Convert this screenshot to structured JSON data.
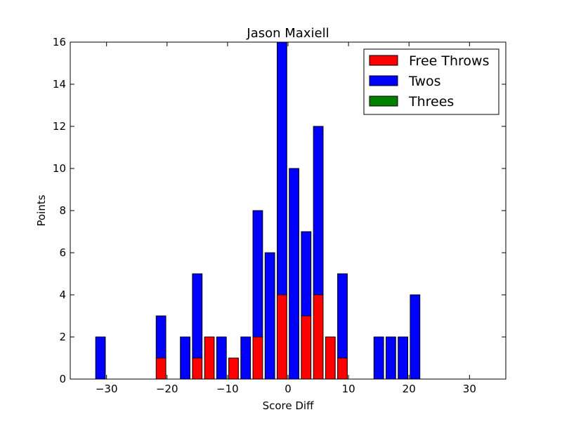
{
  "chart_data": {
    "type": "bar",
    "stacked": true,
    "title": "Jason Maxiell",
    "xlabel": "Score Diff",
    "ylabel": "Points",
    "xlim": [
      -36,
      36
    ],
    "ylim": [
      0,
      16
    ],
    "xticks": [
      -30,
      -20,
      -10,
      0,
      10,
      20,
      30
    ],
    "yticks": [
      0,
      2,
      4,
      6,
      8,
      10,
      12,
      14,
      16
    ],
    "tick_labels_x": [
      "−30",
      "−20",
      "−10",
      "0",
      "10",
      "20",
      "30"
    ],
    "tick_labels_y": [
      "0",
      "2",
      "4",
      "6",
      "8",
      "10",
      "12",
      "14",
      "16"
    ],
    "bar_width": 1.6,
    "grid": false,
    "legend_position": "top-right",
    "x": [
      -35,
      -33,
      -31,
      -29,
      -27,
      -25,
      -23,
      -21,
      -19,
      -17,
      -15,
      -13,
      -11,
      -9,
      -7,
      -5,
      -3,
      -1,
      1,
      3,
      5,
      7,
      9,
      11,
      13,
      15,
      17,
      19,
      21,
      23,
      25,
      27,
      29,
      31,
      33,
      35
    ],
    "series": [
      {
        "name": "Free Throws",
        "color": "#ff0000",
        "values": [
          0,
          0,
          0,
          0,
          0,
          0,
          0,
          1,
          0,
          0,
          1,
          2,
          0,
          1,
          0,
          2,
          0,
          4,
          0,
          3,
          4,
          2,
          1,
          0,
          0,
          0,
          0,
          0,
          0,
          0,
          0,
          0,
          0,
          0,
          0,
          0
        ]
      },
      {
        "name": "Twos",
        "color": "#0000ff",
        "values": [
          0,
          0,
          2,
          0,
          0,
          0,
          0,
          2,
          0,
          2,
          4,
          0,
          2,
          0,
          2,
          6,
          6,
          12,
          10,
          4,
          8,
          0,
          4,
          0,
          0,
          2,
          2,
          2,
          4,
          0,
          0,
          0,
          0,
          0,
          0,
          0
        ]
      },
      {
        "name": "Threes",
        "color": "#008000",
        "values": [
          0,
          0,
          0,
          0,
          0,
          0,
          0,
          0,
          0,
          0,
          0,
          0,
          0,
          0,
          0,
          0,
          0,
          0,
          0,
          0,
          0,
          0,
          0,
          0,
          0,
          0,
          0,
          0,
          0,
          0,
          0,
          0,
          0,
          0,
          0,
          0
        ]
      }
    ]
  }
}
